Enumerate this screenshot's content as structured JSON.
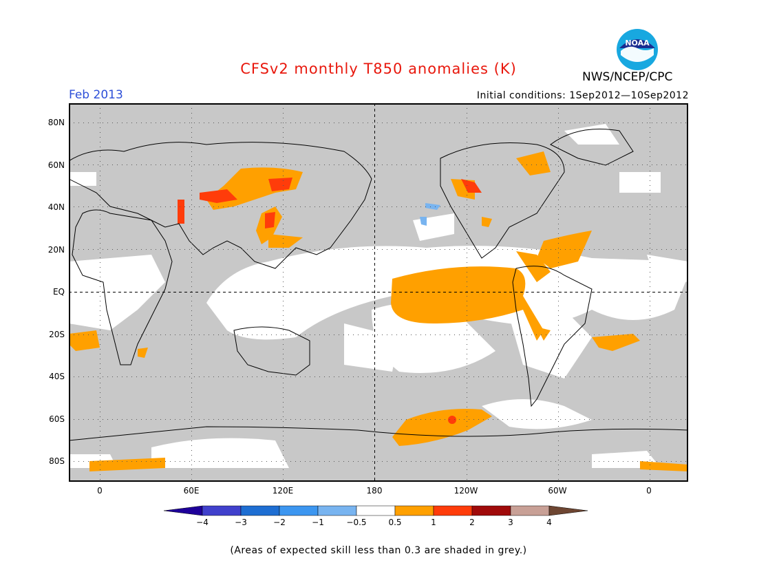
{
  "header": {
    "title": "CFSv2 monthly T850 anomalies (K)",
    "month": "Feb 2013",
    "initial_conditions": "Initial conditions: 1Sep2012—10Sep2012",
    "agency": "NWS/NCEP/CPC",
    "logo_text": "NOAA"
  },
  "map": {
    "lat_labels": [
      "80N",
      "60N",
      "40N",
      "20N",
      "EQ",
      "20S",
      "40S",
      "60S",
      "80S"
    ],
    "lon_labels": [
      "0",
      "60E",
      "120E",
      "180",
      "120W",
      "60W",
      "0"
    ],
    "lat_range": [
      -90,
      90
    ],
    "lon_range": [
      -20,
      380
    ],
    "colors": {
      "skill_grey": "#c8c8c8",
      "land_outline": "#000000",
      "anom_0_5_to_1": "#ffa000",
      "anom_1_to_2": "#ff3c0a",
      "anom_-1_to_-0_5": "#78b4f0"
    }
  },
  "colorbar": {
    "labels": [
      "−4",
      "−3",
      "−2",
      "−1",
      "−0.5",
      "0.5",
      "1",
      "2",
      "3",
      "4"
    ],
    "colors": [
      "#1e009a",
      "#4040cc",
      "#1e6ed2",
      "#3c96f0",
      "#78b4f0",
      "#ffffff",
      "#ffa000",
      "#ff3c0a",
      "#a00a0a",
      "#c8a096",
      "#6e4632"
    ]
  },
  "note": "(Areas of expected skill less than 0.3 are shaded in grey.)"
}
